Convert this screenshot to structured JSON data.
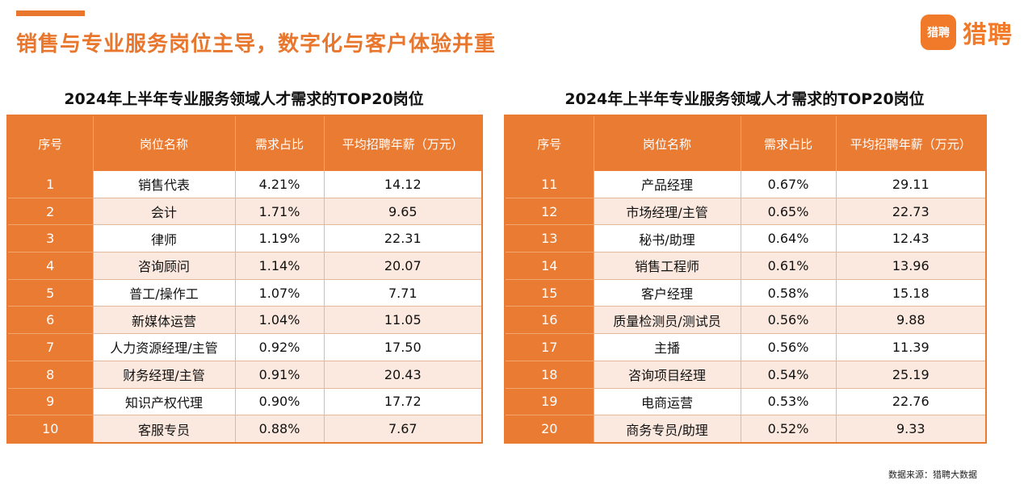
{
  "header": {
    "headline": "销售与专业服务岗位主导，数字化与客户体验并重",
    "logo_badge": "猎聘",
    "logo_text": "猎聘"
  },
  "tables": [
    {
      "title": "2024年上半年专业服务领域人才需求的TOP20岗位",
      "columns": [
        "序号",
        "岗位名称",
        "需求占比",
        "平均招聘年薪（万元）"
      ],
      "rows": [
        [
          "1",
          "销售代表",
          "4.21%",
          "14.12"
        ],
        [
          "2",
          "会计",
          "1.71%",
          "9.65"
        ],
        [
          "3",
          "律师",
          "1.19%",
          "22.31"
        ],
        [
          "4",
          "咨询顾问",
          "1.14%",
          "20.07"
        ],
        [
          "5",
          "普工/操作工",
          "1.07%",
          "7.71"
        ],
        [
          "6",
          "新媒体运营",
          "1.04%",
          "11.05"
        ],
        [
          "7",
          "人力资源经理/主管",
          "0.92%",
          "17.50"
        ],
        [
          "8",
          "财务经理/主管",
          "0.91%",
          "20.43"
        ],
        [
          "9",
          "知识产权代理",
          "0.90%",
          "17.72"
        ],
        [
          "10",
          "客服专员",
          "0.88%",
          "7.67"
        ]
      ]
    },
    {
      "title": "2024年上半年专业服务领域人才需求的TOP20岗位",
      "columns": [
        "序号",
        "岗位名称",
        "需求占比",
        "平均招聘年薪（万元）"
      ],
      "rows": [
        [
          "11",
          "产品经理",
          "0.67%",
          "29.11"
        ],
        [
          "12",
          "市场经理/主管",
          "0.65%",
          "22.73"
        ],
        [
          "13",
          "秘书/助理",
          "0.64%",
          "12.43"
        ],
        [
          "14",
          "销售工程师",
          "0.61%",
          "13.96"
        ],
        [
          "15",
          "客户经理",
          "0.58%",
          "15.18"
        ],
        [
          "16",
          "质量检测员/测试员",
          "0.56%",
          "9.88"
        ],
        [
          "17",
          "主播",
          "0.56%",
          "11.39"
        ],
        [
          "18",
          "咨询项目经理",
          "0.54%",
          "25.19"
        ],
        [
          "19",
          "电商运营",
          "0.53%",
          "22.76"
        ],
        [
          "20",
          "商务专员/助理",
          "0.52%",
          "9.33"
        ]
      ]
    }
  ],
  "footer": {
    "source": "数据来源：猎聘大数据"
  }
}
